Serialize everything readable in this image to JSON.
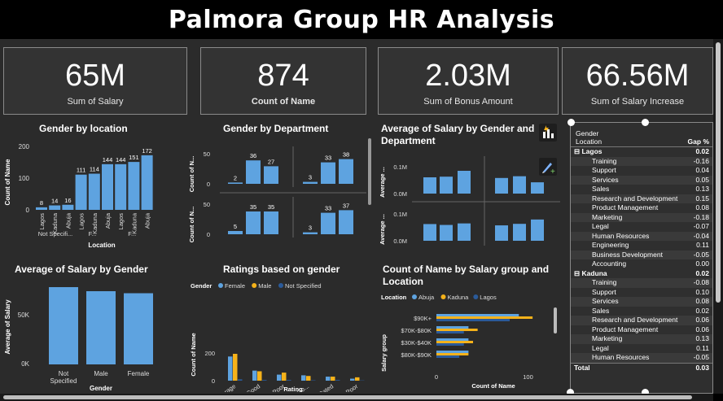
{
  "header": {
    "title": "Palmora Group HR Analysis"
  },
  "kpis": [
    {
      "value": "65M",
      "label": "Sum of Salary"
    },
    {
      "value": "874",
      "label": "Count of Name"
    },
    {
      "value": "2.03M",
      "label": "Sum of Bonus Amount"
    },
    {
      "value": "66.56M",
      "label": "Sum of Salary Increase"
    }
  ],
  "visuals": {
    "gender_location": {
      "title": "Gender by location",
      "ylabel": "Count of Name",
      "xlabel": "Location",
      "yticks": [
        "200",
        "100",
        "0"
      ]
    },
    "gender_department": {
      "title": "Gender by Department",
      "ylabel": "Count of N...",
      "yticks": [
        "50",
        "0"
      ]
    },
    "avg_salary_gender_dept": {
      "title_line1": "Average of Salary by Gender and",
      "title_line2": "Department",
      "ylabel": "Average ...",
      "yticks": [
        "0.1M",
        "0.0M"
      ]
    },
    "avg_salary_gender": {
      "title": "Average of Salary by Gender",
      "ylabel": "Average of Salary",
      "xlabel": "Gender",
      "yticks": [
        "50K",
        "0K"
      ]
    },
    "ratings_gender": {
      "title": "Ratings based on gender",
      "legend_title": "Gender",
      "ylabel": "Count of Name",
      "xlabel": "Rating",
      "yticks": [
        "200",
        "0"
      ]
    },
    "salary_group_location": {
      "title_line1": "Count of Name by Salary group and",
      "title_line2": "Location",
      "legend_title": "Location",
      "ylabel": "Salary group",
      "xlabel": "Count of Name",
      "xticks": [
        "0",
        "100"
      ]
    }
  },
  "colors": {
    "blue": "#5ea3e0",
    "orange": "#f5b21a",
    "navy": "#2a5a9a"
  },
  "chart_data": [
    {
      "type": "bar",
      "title": "Gender by location",
      "xlabel": "Location",
      "ylabel": "Count of Name",
      "ylim": [
        0,
        200
      ],
      "categories": [
        "Lagos",
        "Kaduna",
        "Abuja",
        "Lagos",
        "Kaduna",
        "Abuja",
        "Lagos",
        "Kaduna",
        "Abuja"
      ],
      "group_labels": [
        "Not Specifi...",
        "F...",
        "F..."
      ],
      "values": [
        8,
        14,
        16,
        111,
        114,
        144,
        144,
        151,
        172
      ]
    },
    {
      "type": "bar",
      "title": "Gender by Department",
      "ylabel": "Count of N...",
      "ylim": [
        0,
        50
      ],
      "panels": [
        {
          "values": [
            2,
            36,
            27,
            3,
            33,
            38
          ]
        },
        {
          "values": [
            5,
            35,
            35,
            3,
            33,
            37
          ]
        }
      ]
    },
    {
      "type": "bar",
      "title": "Average of Salary by Gender and Department",
      "ylabel": "Average ...",
      "ylim": [
        0,
        0.15
      ],
      "panels": [
        {
          "values": [
            0.075,
            0.078,
            0.105,
            0.072,
            0.08,
            0.052
          ]
        },
        {
          "values": [
            0.077,
            0.073,
            0.08,
            0.071,
            0.078,
            0.098
          ]
        }
      ]
    },
    {
      "type": "bar",
      "title": "Average of Salary by Gender",
      "xlabel": "Gender",
      "ylabel": "Average of Salary",
      "ylim": [
        0,
        80000
      ],
      "categories": [
        "Not Specified",
        "Male",
        "Female"
      ],
      "values": [
        76000,
        72000,
        70000
      ]
    },
    {
      "type": "bar",
      "title": "Ratings based on gender",
      "xlabel": "Rating",
      "ylabel": "Count of Name",
      "ylim": [
        0,
        200
      ],
      "legend": "top",
      "categories": [
        "Average",
        "Good",
        "Poor",
        "Very Go...",
        "Not Rated",
        "Very Poor"
      ],
      "series": [
        {
          "name": "Female",
          "color": "#5ea3e0",
          "values": [
            180,
            75,
            45,
            40,
            30,
            15
          ]
        },
        {
          "name": "Male",
          "color": "#f5b21a",
          "values": [
            200,
            70,
            60,
            35,
            30,
            25
          ]
        },
        {
          "name": "Not Specified",
          "color": "#2a5a9a",
          "values": [
            10,
            5,
            5,
            3,
            5,
            2
          ]
        }
      ]
    },
    {
      "type": "bar",
      "orientation": "horizontal",
      "title": "Count of Name by Salary group and Location",
      "xlabel": "Count of Name",
      "ylabel": "Salary group",
      "xlim": [
        0,
        120
      ],
      "legend": "top",
      "categories": [
        "$90K+",
        "$70K-$80K",
        "$30K-$40K",
        "$80K-$90K"
      ],
      "series": [
        {
          "name": "Abuja",
          "color": "#5ea3e0",
          "values": [
            90,
            35,
            35,
            35
          ]
        },
        {
          "name": "Kaduna",
          "color": "#f5b21a",
          "values": [
            105,
            45,
            40,
            35
          ]
        },
        {
          "name": "Lagos",
          "color": "#2a5a9a",
          "values": [
            80,
            30,
            30,
            25
          ]
        }
      ]
    }
  ],
  "matrix": {
    "header_row": "Gender",
    "header_col1": "Location",
    "header_col2": "Gap %",
    "groups": [
      {
        "name": "Lagos",
        "value": "0.02",
        "rows": [
          {
            "name": "Training",
            "value": "-0.16"
          },
          {
            "name": "Support",
            "value": "0.04"
          },
          {
            "name": "Services",
            "value": "0.05"
          },
          {
            "name": "Sales",
            "value": "0.13"
          },
          {
            "name": "Research and Development",
            "value": "0.15"
          },
          {
            "name": "Product Management",
            "value": "0.08"
          },
          {
            "name": "Marketing",
            "value": "-0.18"
          },
          {
            "name": "Legal",
            "value": "-0.07"
          },
          {
            "name": "Human Resources",
            "value": "-0.04"
          },
          {
            "name": "Engineering",
            "value": "0.11"
          },
          {
            "name": "Business Development",
            "value": "-0.05"
          },
          {
            "name": "Accounting",
            "value": "0.00"
          }
        ]
      },
      {
        "name": "Kaduna",
        "value": "0.02",
        "rows": [
          {
            "name": "Training",
            "value": "-0.08"
          },
          {
            "name": "Support",
            "value": "0.10"
          },
          {
            "name": "Services",
            "value": "0.08"
          },
          {
            "name": "Sales",
            "value": "0.02"
          },
          {
            "name": "Research and Development",
            "value": "0.06"
          },
          {
            "name": "Product Management",
            "value": "0.06"
          },
          {
            "name": "Marketing",
            "value": "0.13"
          },
          {
            "name": "Legal",
            "value": "0.11"
          },
          {
            "name": "Human Resources",
            "value": "-0.05"
          }
        ]
      }
    ],
    "total_label": "Total",
    "total_value": "0.03"
  }
}
